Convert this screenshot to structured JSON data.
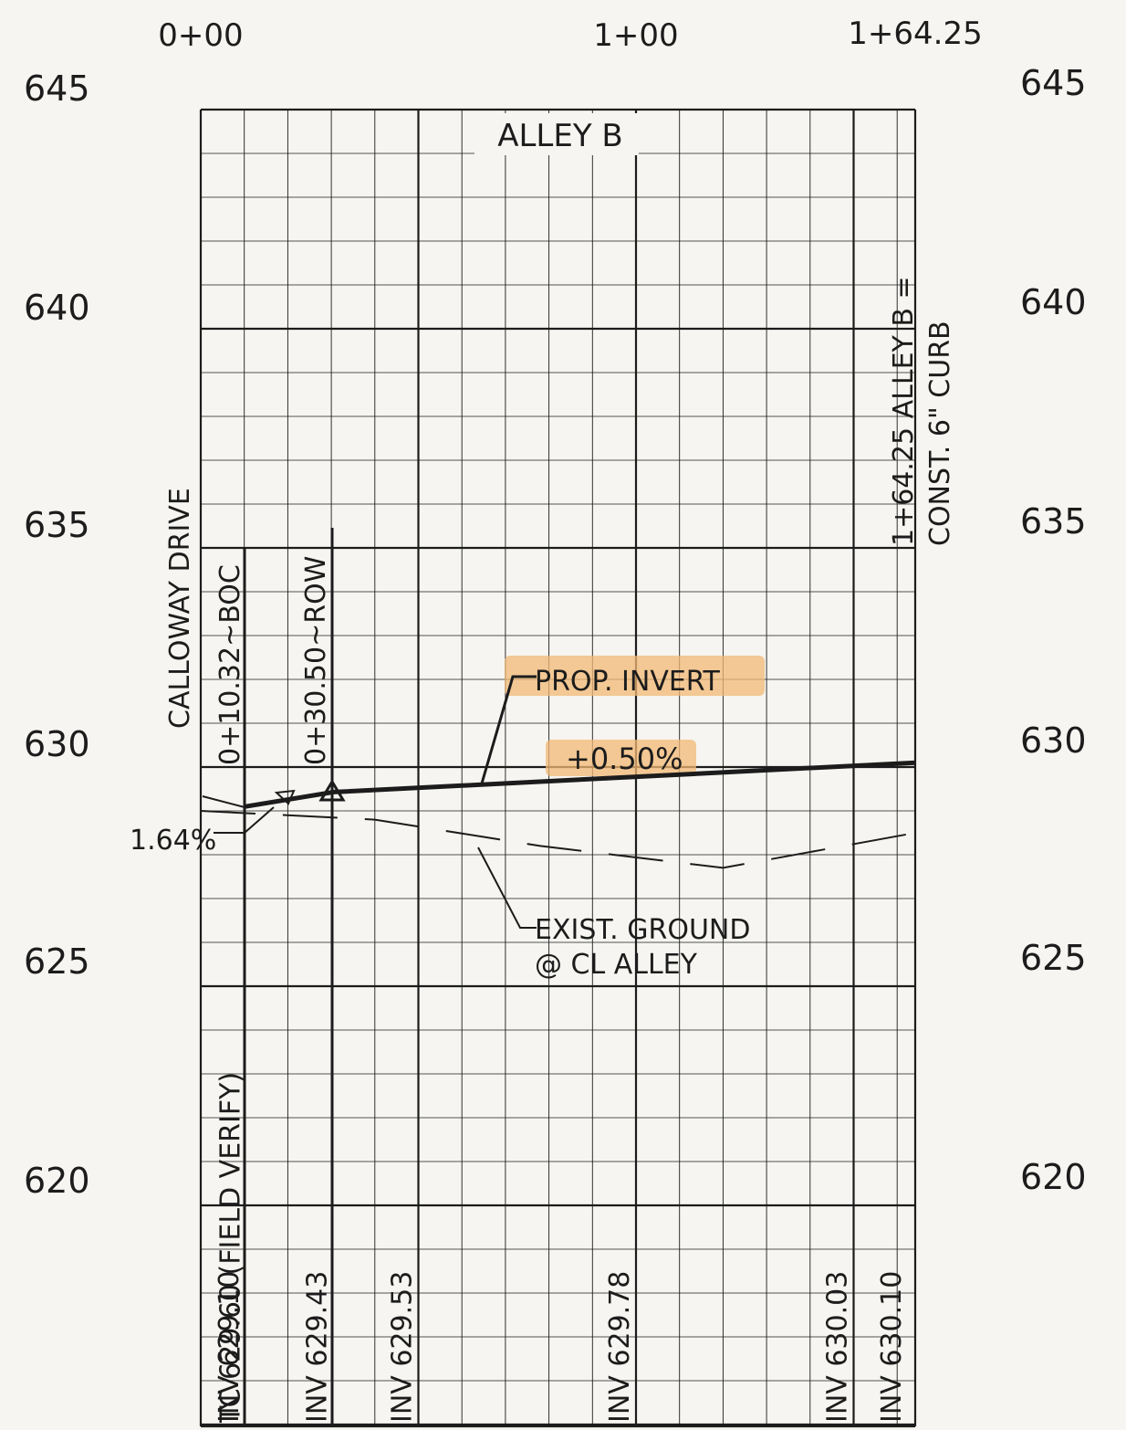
{
  "drawing": {
    "title": "ALLEY B",
    "stations": [
      {
        "label": "0+00",
        "value": 0
      },
      {
        "label": "1+00",
        "value": 100
      },
      {
        "label": "1+64.25",
        "value": 164.25
      }
    ],
    "elevations_left": [
      {
        "label": "645",
        "value": 645
      },
      {
        "label": "640",
        "value": 640
      },
      {
        "label": "635",
        "value": 635
      },
      {
        "label": "630",
        "value": 630
      },
      {
        "label": "625",
        "value": 625
      },
      {
        "label": "620",
        "value": 620
      }
    ],
    "elevations_right": [
      {
        "label": "645",
        "value": 645
      },
      {
        "label": "640",
        "value": 640
      },
      {
        "label": "635",
        "value": 635
      },
      {
        "label": "630",
        "value": 630
      },
      {
        "label": "625",
        "value": 625
      },
      {
        "label": "620",
        "value": 620
      }
    ],
    "vertical_labels": {
      "street": "CALLOWAY DRIVE",
      "boc": "0+10.32~BOC",
      "row": "0+30.50~ROW",
      "end_station": "1+64.25 ALLEY B =",
      "end_note": "CONST. 6\" CURB"
    },
    "annotations": {
      "prop_invert": "PROP. INVERT",
      "slope_main": "+0.50%",
      "slope_start": "1.64%",
      "exist_ground_1": "EXIST. GROUND",
      "exist_ground_2": "@ CL ALLEY"
    },
    "bottom_labels": [
      {
        "text": "TC 629.60 (FIELD VERIFY)",
        "station": 3
      },
      {
        "text": "INV 629.10",
        "station": 10.32
      },
      {
        "text": "INV 629.43",
        "station": 30.5
      },
      {
        "text": "INV 629.53",
        "station": 50
      },
      {
        "text": "INV 629.78",
        "station": 100
      },
      {
        "text": "INV 630.03",
        "station": 150
      },
      {
        "text": "INV 630.10",
        "station": 162.5
      }
    ],
    "profiles": {
      "proposed_invert": [
        [
          10.32,
          629.1
        ],
        [
          30.5,
          629.43
        ],
        [
          164.25,
          630.1
        ]
      ],
      "existing_ground": [
        [
          0,
          629.0
        ],
        [
          40,
          628.8
        ],
        [
          78,
          628.2
        ],
        [
          120,
          627.7
        ],
        [
          164.25,
          628.5
        ]
      ]
    },
    "colors": {
      "ink": "#1c1c1c",
      "paper": "#f6f5f1",
      "highlight": "#f2b874"
    }
  }
}
